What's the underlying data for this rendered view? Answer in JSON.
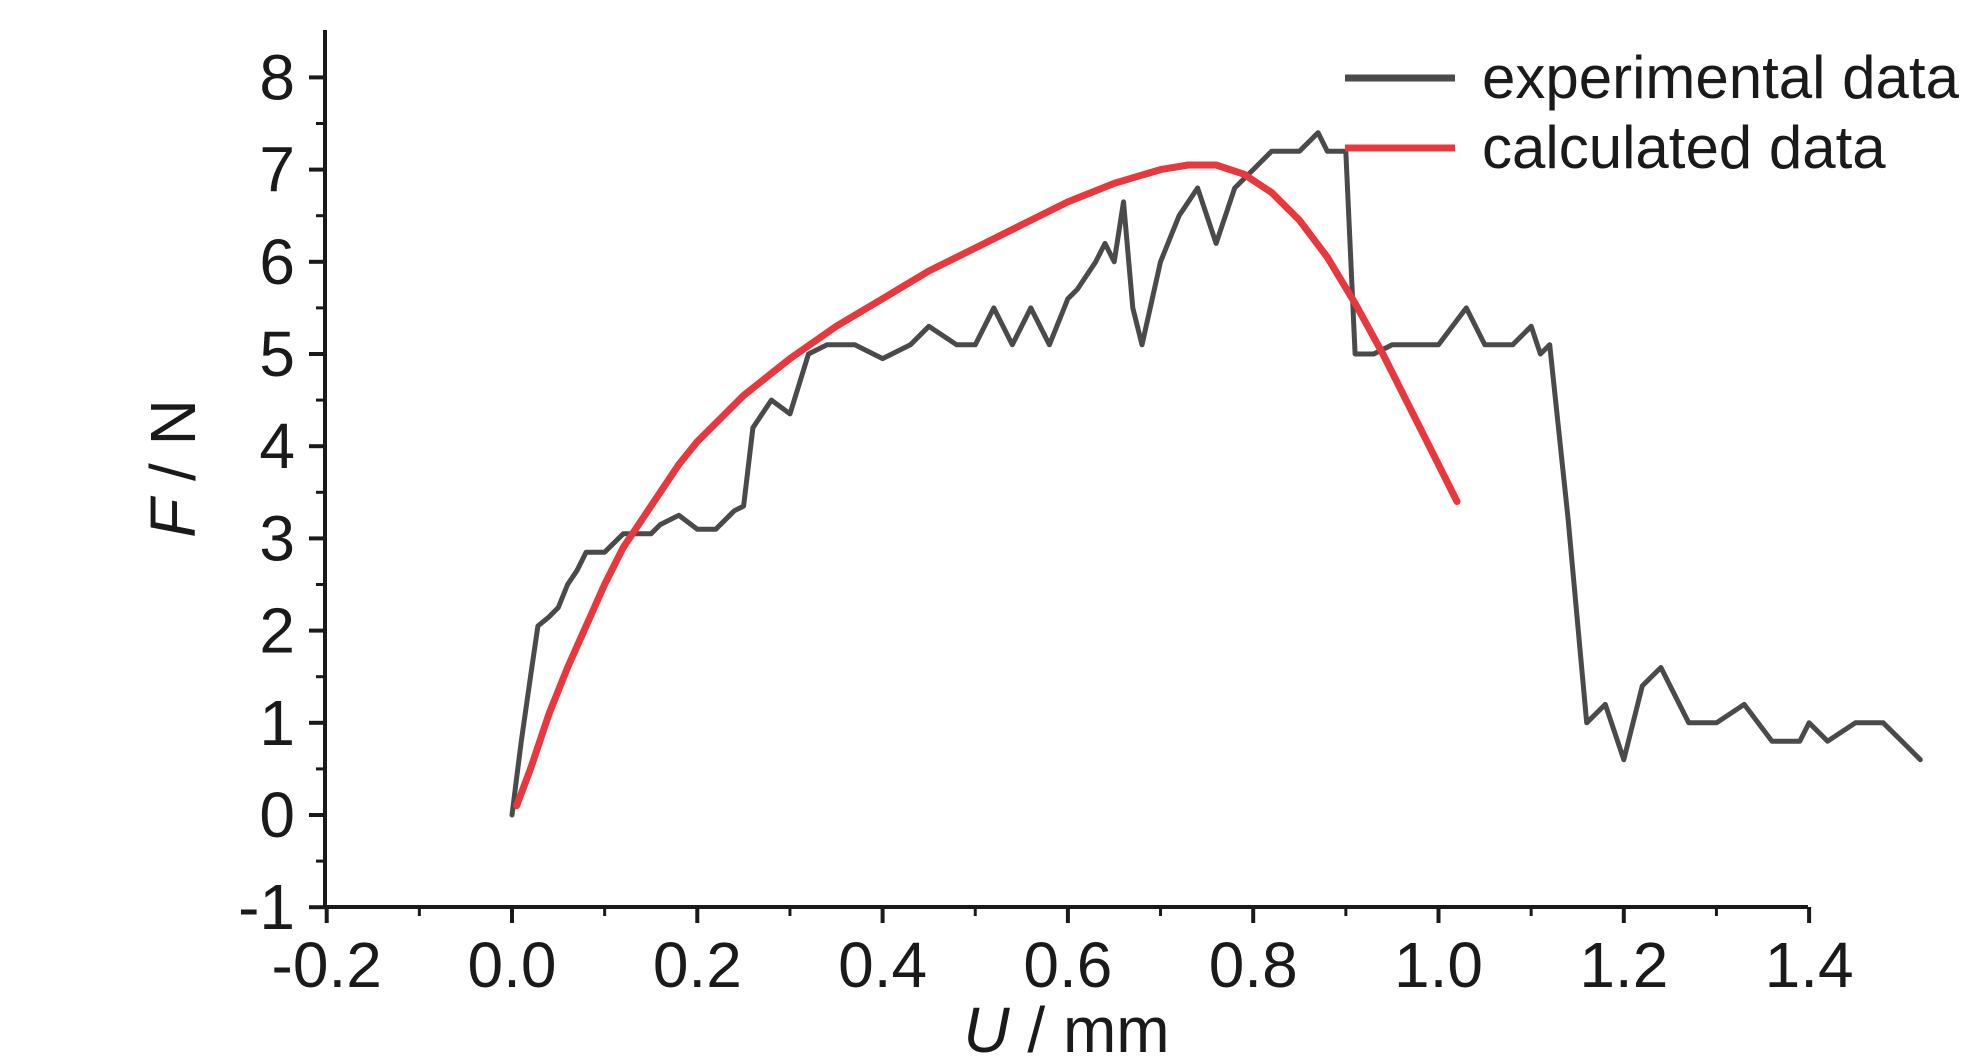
{
  "chart_data": {
    "type": "line",
    "xlabel_var": "U",
    "xlabel_unit": " / mm",
    "ylabel_var": "F",
    "ylabel_unit": " / N",
    "xlim": [
      -0.2,
      1.4
    ],
    "ylim": [
      -1,
      8.5
    ],
    "x_ticks": [
      -0.2,
      0.0,
      0.2,
      0.4,
      0.6,
      0.8,
      1.0,
      1.2,
      1.4
    ],
    "x_tick_labels": [
      "-0.2",
      "0.0",
      "0.2",
      "0.4",
      "0.6",
      "0.8",
      "1.0",
      "1.2",
      "1.4"
    ],
    "y_ticks": [
      -1,
      0,
      1,
      2,
      3,
      4,
      5,
      6,
      7,
      8
    ],
    "y_tick_labels": [
      "-1",
      "0",
      "1",
      "2",
      "3",
      "4",
      "5",
      "6",
      "7",
      "8"
    ],
    "grid": false,
    "legend_position": "top-right",
    "series": [
      {
        "name": "experimental data",
        "color": "#4a4a4a",
        "points": [
          [
            0.0,
            0.0
          ],
          [
            0.005,
            0.4
          ],
          [
            0.01,
            0.8
          ],
          [
            0.02,
            1.5
          ],
          [
            0.028,
            2.05
          ],
          [
            0.04,
            2.15
          ],
          [
            0.05,
            2.25
          ],
          [
            0.06,
            2.5
          ],
          [
            0.07,
            2.65
          ],
          [
            0.08,
            2.85
          ],
          [
            0.1,
            2.85
          ],
          [
            0.12,
            3.05
          ],
          [
            0.15,
            3.05
          ],
          [
            0.16,
            3.15
          ],
          [
            0.18,
            3.25
          ],
          [
            0.2,
            3.1
          ],
          [
            0.22,
            3.1
          ],
          [
            0.24,
            3.3
          ],
          [
            0.25,
            3.35
          ],
          [
            0.26,
            4.2
          ],
          [
            0.28,
            4.5
          ],
          [
            0.3,
            4.35
          ],
          [
            0.32,
            5.0
          ],
          [
            0.34,
            5.1
          ],
          [
            0.37,
            5.1
          ],
          [
            0.4,
            4.95
          ],
          [
            0.43,
            5.1
          ],
          [
            0.45,
            5.3
          ],
          [
            0.48,
            5.1
          ],
          [
            0.5,
            5.1
          ],
          [
            0.52,
            5.5
          ],
          [
            0.54,
            5.1
          ],
          [
            0.56,
            5.5
          ],
          [
            0.58,
            5.1
          ],
          [
            0.6,
            5.6
          ],
          [
            0.61,
            5.7
          ],
          [
            0.63,
            6.0
          ],
          [
            0.64,
            6.2
          ],
          [
            0.65,
            6.0
          ],
          [
            0.66,
            6.65
          ],
          [
            0.67,
            5.5
          ],
          [
            0.68,
            5.1
          ],
          [
            0.7,
            6.0
          ],
          [
            0.72,
            6.5
          ],
          [
            0.74,
            6.8
          ],
          [
            0.76,
            6.2
          ],
          [
            0.78,
            6.8
          ],
          [
            0.8,
            7.0
          ],
          [
            0.82,
            7.2
          ],
          [
            0.85,
            7.2
          ],
          [
            0.87,
            7.4
          ],
          [
            0.88,
            7.2
          ],
          [
            0.9,
            7.2
          ],
          [
            0.91,
            5.0
          ],
          [
            0.93,
            5.0
          ],
          [
            0.95,
            5.1
          ],
          [
            1.0,
            5.1
          ],
          [
            1.03,
            5.5
          ],
          [
            1.05,
            5.1
          ],
          [
            1.08,
            5.1
          ],
          [
            1.1,
            5.3
          ],
          [
            1.11,
            5.0
          ],
          [
            1.12,
            5.1
          ],
          [
            1.14,
            3.2
          ],
          [
            1.16,
            1.0
          ],
          [
            1.18,
            1.2
          ],
          [
            1.2,
            0.6
          ],
          [
            1.22,
            1.4
          ],
          [
            1.24,
            1.6
          ],
          [
            1.27,
            1.0
          ],
          [
            1.3,
            1.0
          ],
          [
            1.33,
            1.2
          ],
          [
            1.36,
            0.8
          ],
          [
            1.39,
            0.8
          ],
          [
            1.4,
            1.0
          ],
          [
            1.42,
            0.8
          ],
          [
            1.45,
            1.0
          ],
          [
            1.48,
            1.0
          ],
          [
            1.5,
            0.8
          ],
          [
            1.52,
            0.6
          ]
        ]
      },
      {
        "name": "calculated data",
        "color": "#e8383d",
        "points": [
          [
            0.005,
            0.1
          ],
          [
            0.02,
            0.5
          ],
          [
            0.04,
            1.1
          ],
          [
            0.06,
            1.6
          ],
          [
            0.08,
            2.05
          ],
          [
            0.1,
            2.5
          ],
          [
            0.12,
            2.9
          ],
          [
            0.15,
            3.35
          ],
          [
            0.18,
            3.8
          ],
          [
            0.2,
            4.05
          ],
          [
            0.25,
            4.55
          ],
          [
            0.3,
            4.95
          ],
          [
            0.35,
            5.3
          ],
          [
            0.4,
            5.6
          ],
          [
            0.45,
            5.9
          ],
          [
            0.5,
            6.15
          ],
          [
            0.55,
            6.4
          ],
          [
            0.6,
            6.65
          ],
          [
            0.65,
            6.85
          ],
          [
            0.7,
            7.0
          ],
          [
            0.73,
            7.05
          ],
          [
            0.76,
            7.05
          ],
          [
            0.79,
            6.95
          ],
          [
            0.82,
            6.75
          ],
          [
            0.85,
            6.45
          ],
          [
            0.88,
            6.05
          ],
          [
            0.91,
            5.55
          ],
          [
            0.94,
            5.0
          ],
          [
            0.97,
            4.4
          ],
          [
            1.0,
            3.8
          ],
          [
            1.02,
            3.4
          ]
        ]
      }
    ]
  }
}
